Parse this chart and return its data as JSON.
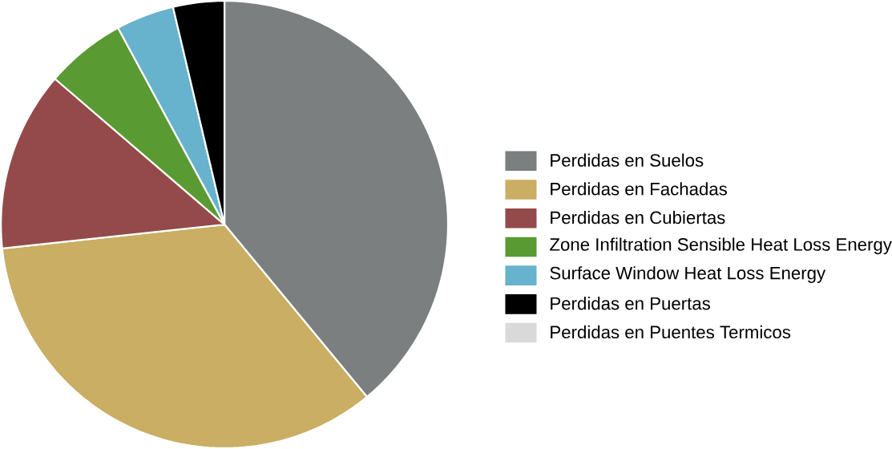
{
  "chart_data": {
    "type": "pie",
    "categories": [
      "Perdidas en Suelos",
      "Perdidas en Fachadas",
      "Perdidas en Cubiertas",
      "Zone Infiltration Sensible Heat Loss Energy",
      "Surface Window Heat Loss Energy",
      "Perdidas en Puertas",
      "Perdidas en Puentes Termicos"
    ],
    "values": [
      39.0,
      34.3,
      13.0,
      5.8,
      4.2,
      3.7,
      0
    ],
    "colors": [
      "#7b7f80",
      "#c9ae63",
      "#944a4a",
      "#5a9a32",
      "#67b2cc",
      "#000000",
      "#d9d9d9"
    ],
    "legend": "right"
  }
}
